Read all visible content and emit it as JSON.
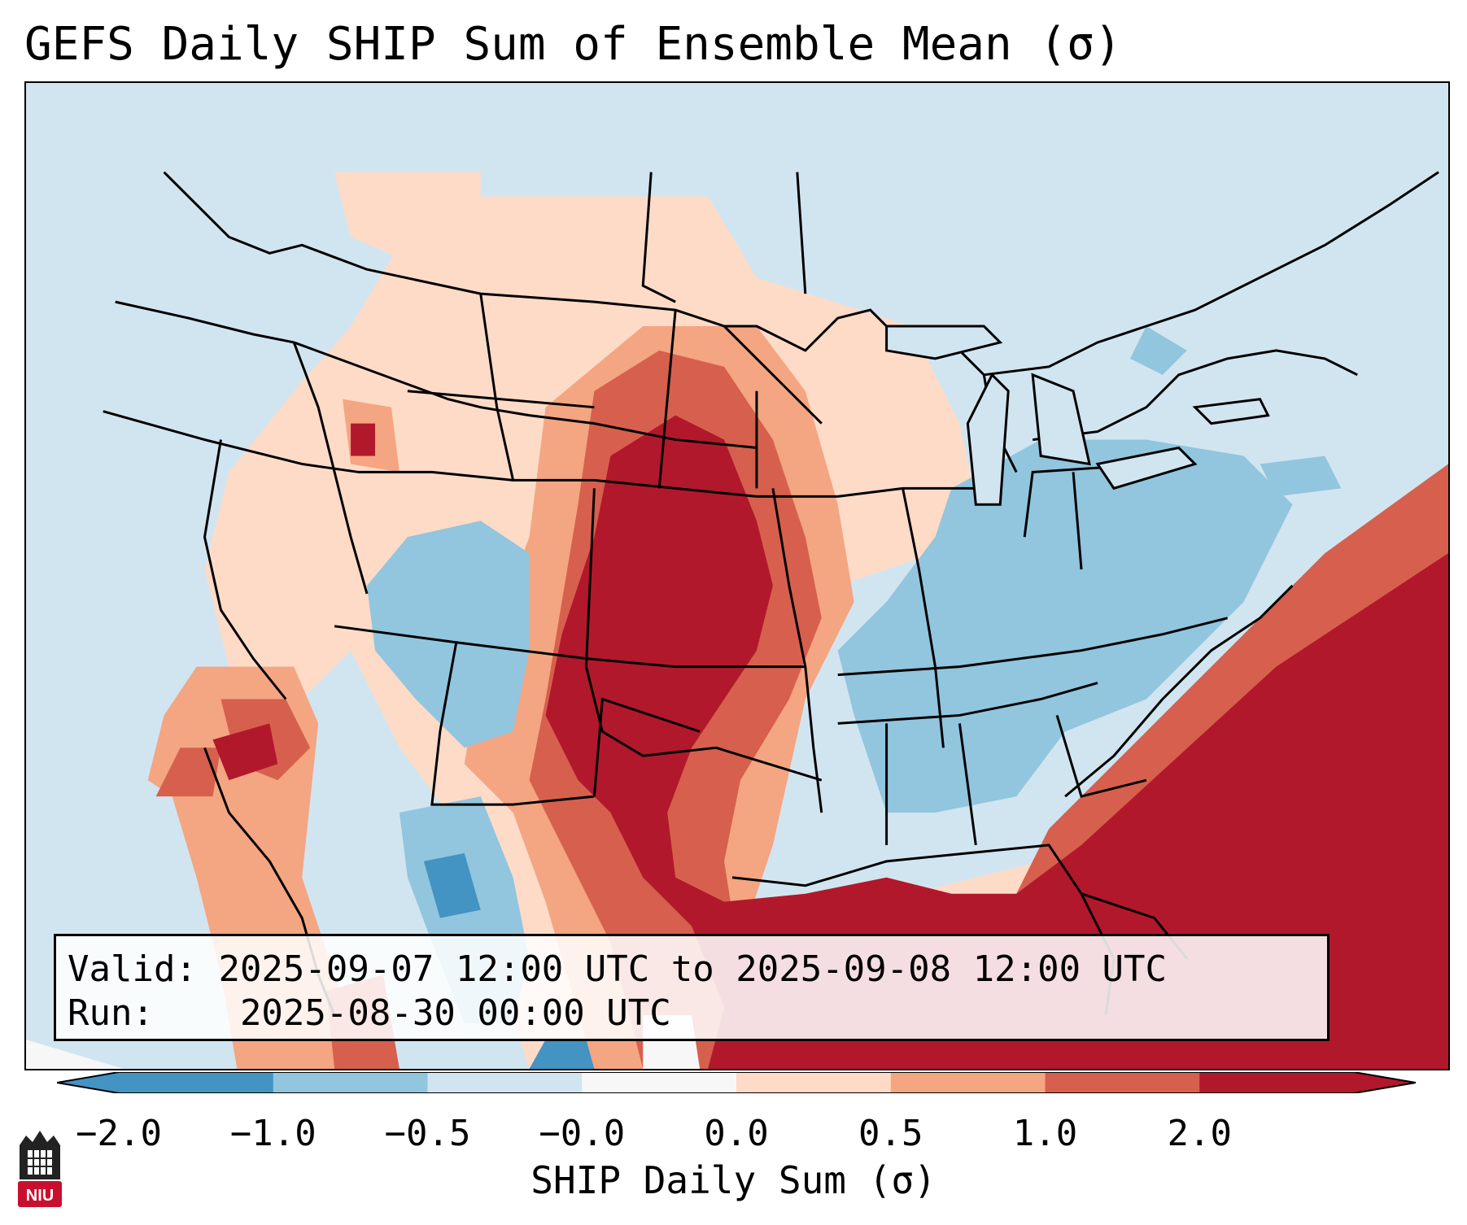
{
  "title": "GEFS Daily SHIP Sum of Ensemble Mean (σ)",
  "info": {
    "valid_label": "Valid:",
    "valid_value": "2025-09-07 12:00 UTC to 2025-09-08 12:00 UTC",
    "run_label": "Run:",
    "run_value": "2025-08-30 00:00 UTC"
  },
  "colorbar": {
    "label": "SHIP Daily Sum (σ)",
    "ticks": [
      "−2.0",
      "−1.0",
      "−0.5",
      "−0.0",
      "0.0",
      "0.5",
      "1.0",
      "2.0"
    ],
    "colors": [
      "#4393c3",
      "#92c5de",
      "#d1e5f0",
      "#f7f7f7",
      "#fddbc7",
      "#f4a582",
      "#d6604d",
      "#b2182b"
    ],
    "extend": "both"
  },
  "logo": {
    "text": "NIU",
    "color": "#c8102e"
  }
}
